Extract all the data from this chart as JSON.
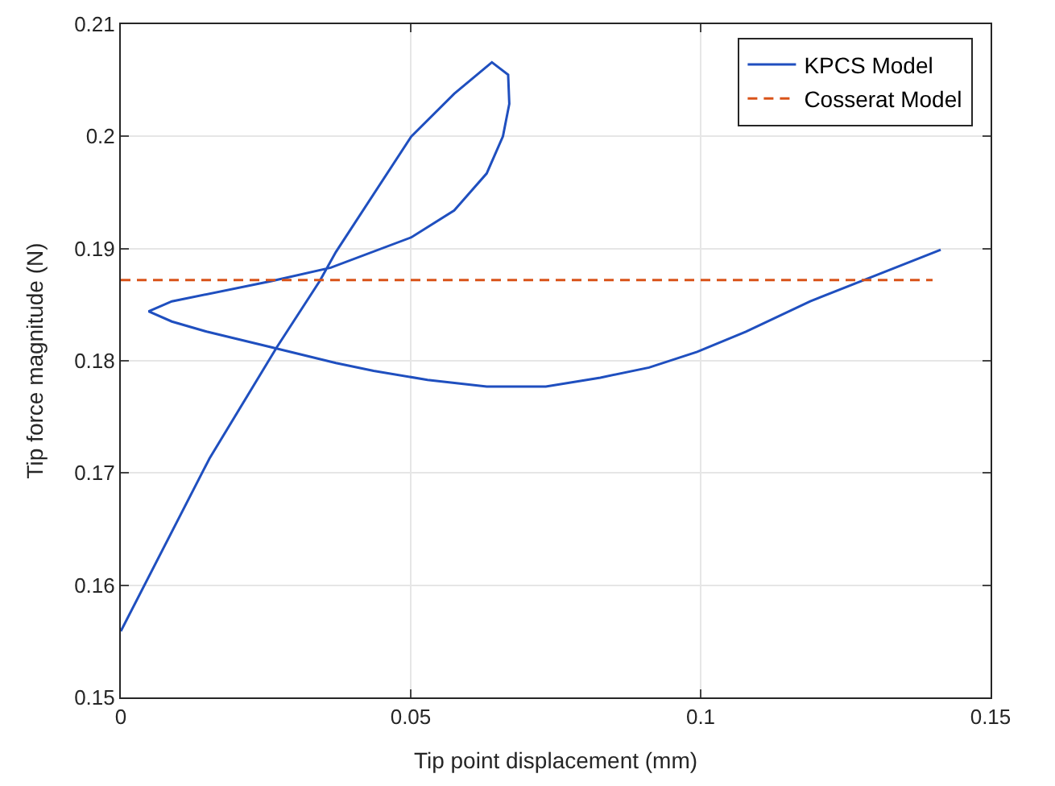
{
  "chart_data": {
    "type": "line",
    "xlabel": "Tip point displacement (mm)",
    "ylabel": "Tip force magnitude (N)",
    "xlim": [
      0,
      0.15
    ],
    "ylim": [
      0.15,
      0.21
    ],
    "xticks": [
      0,
      0.05,
      0.1,
      0.15
    ],
    "yticks": [
      0.15,
      0.16,
      0.17,
      0.18,
      0.19,
      0.2,
      0.21
    ],
    "grid": true,
    "legend": "top right",
    "marker": "none",
    "series": [
      {
        "name": "KPCS Model",
        "color": "#1f4fbf",
        "line_style": "solid",
        "x": [
          0,
          0.0153,
          0.0269,
          0.0343,
          0.0371,
          0.0501,
          0.0575,
          0.064,
          0.0668,
          0.067,
          0.0659,
          0.0631,
          0.0575,
          0.0501,
          0.0362,
          0.026,
          0.0088,
          0.0048,
          0.0088,
          0.0148,
          0.026,
          0.0371,
          0.0436,
          0.0529,
          0.0631,
          0.0733,
          0.0827,
          0.0911,
          0.0994,
          0.1078,
          0.1189,
          0.1282,
          0.1414
        ],
        "values": [
          0.1559,
          0.1713,
          0.1812,
          0.1871,
          0.1897,
          0.2,
          0.2038,
          0.2066,
          0.2055,
          0.2029,
          0.2,
          0.1967,
          0.1934,
          0.191,
          0.1883,
          0.1871,
          0.1853,
          0.1844,
          0.1835,
          0.1826,
          0.1812,
          0.1798,
          0.1791,
          0.1783,
          0.1777,
          0.1777,
          0.1785,
          0.1794,
          0.1808,
          0.1826,
          0.1853,
          0.1872,
          0.1899
        ]
      },
      {
        "name": "Cosserat Model",
        "color": "#d95319",
        "line_style": "dashed",
        "x": [
          0,
          0.14
        ],
        "values": [
          0.1872,
          0.1872
        ]
      }
    ]
  }
}
